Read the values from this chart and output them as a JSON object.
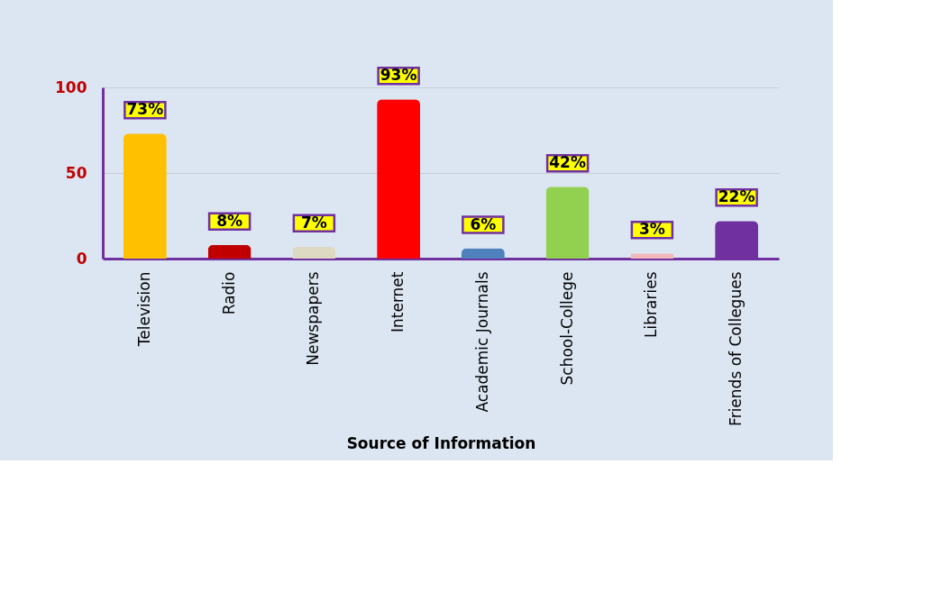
{
  "chart_data": {
    "type": "bar",
    "xlabel": "Source of Information",
    "categories": [
      "Television",
      "Radio",
      "Newspapers",
      "Internet",
      "Academic Journals",
      "School-College",
      "Libraries",
      "Friends of Collegues"
    ],
    "values": [
      73,
      8,
      7,
      93,
      6,
      42,
      3,
      22
    ],
    "colors": [
      "#ffc000",
      "#c00000",
      "#ddd9c3",
      "#ff0000",
      "#4f81bd",
      "#92d050",
      "#f2b8b8",
      "#7030a0"
    ],
    "value_labels": [
      "73%",
      "8%",
      "7%",
      "93%",
      "6%",
      "42%",
      "3%",
      "22%"
    ],
    "ylim": [
      0,
      100
    ],
    "yticks": [
      0,
      50,
      100
    ],
    "grid": "y"
  }
}
